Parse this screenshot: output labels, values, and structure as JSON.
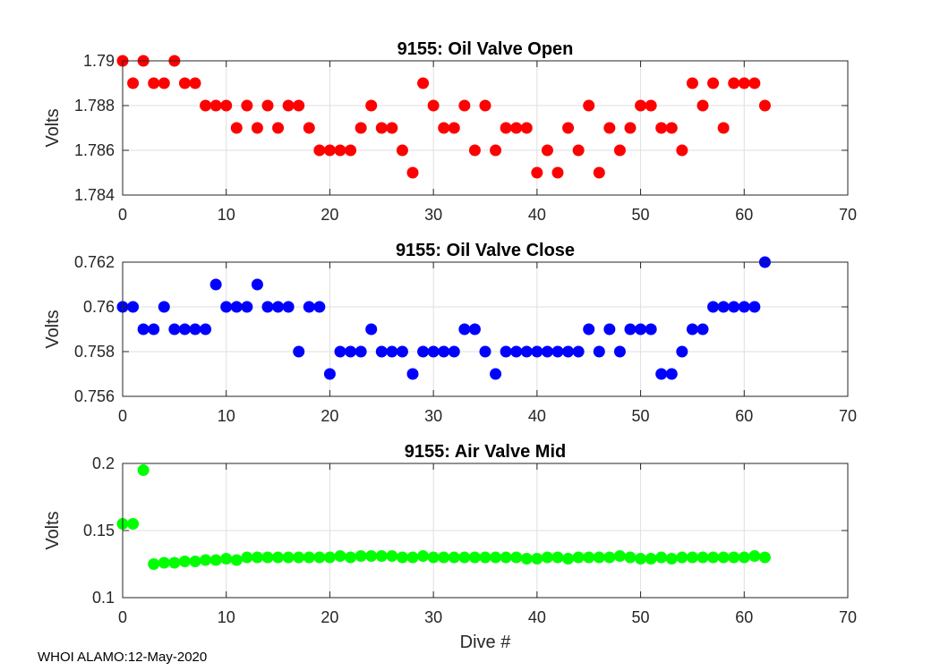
{
  "chart_data": [
    {
      "type": "scatter",
      "title": "9155: Oil Valve Open",
      "xlabel": "",
      "ylabel": "Volts",
      "xlim": [
        0,
        70
      ],
      "ylim": [
        1.784,
        1.79
      ],
      "xticks": [
        "0",
        "10",
        "20",
        "30",
        "40",
        "50",
        "60",
        "70"
      ],
      "yticks": [
        "1.784",
        "1.786",
        "1.788",
        "1.79"
      ],
      "grid": true,
      "color": "#ff0000",
      "x": [
        0,
        1,
        2,
        3,
        4,
        5,
        6,
        7,
        8,
        9,
        10,
        11,
        12,
        13,
        14,
        15,
        16,
        17,
        18,
        19,
        20,
        21,
        22,
        23,
        24,
        25,
        26,
        27,
        28,
        29,
        30,
        31,
        32,
        33,
        34,
        35,
        36,
        37,
        38,
        39,
        40,
        41,
        42,
        43,
        44,
        45,
        46,
        47,
        48,
        49,
        50,
        51,
        52,
        53,
        54,
        55,
        56,
        57,
        58,
        59,
        60,
        61,
        62
      ],
      "y": [
        1.79,
        1.789,
        1.79,
        1.789,
        1.789,
        1.79,
        1.789,
        1.789,
        1.788,
        1.788,
        1.788,
        1.787,
        1.788,
        1.787,
        1.788,
        1.787,
        1.788,
        1.788,
        1.787,
        1.786,
        1.786,
        1.786,
        1.786,
        1.787,
        1.788,
        1.787,
        1.787,
        1.786,
        1.785,
        1.789,
        1.788,
        1.787,
        1.787,
        1.788,
        1.786,
        1.788,
        1.786,
        1.787,
        1.787,
        1.787,
        1.785,
        1.786,
        1.785,
        1.787,
        1.786,
        1.788,
        1.785,
        1.787,
        1.786,
        1.787,
        1.788,
        1.788,
        1.787,
        1.787,
        1.786,
        1.789,
        1.788,
        1.789,
        1.787,
        1.789,
        1.789,
        1.789,
        1.788
      ]
    },
    {
      "type": "scatter",
      "title": "9155: Oil Valve Close",
      "xlabel": "",
      "ylabel": "Volts",
      "xlim": [
        0,
        70
      ],
      "ylim": [
        0.756,
        0.762
      ],
      "xticks": [
        "0",
        "10",
        "20",
        "30",
        "40",
        "50",
        "60",
        "70"
      ],
      "yticks": [
        "0.756",
        "0.758",
        "0.76",
        "0.762"
      ],
      "grid": true,
      "color": "#0000ff",
      "x": [
        0,
        1,
        2,
        3,
        4,
        5,
        6,
        7,
        8,
        9,
        10,
        11,
        12,
        13,
        14,
        15,
        16,
        17,
        18,
        19,
        20,
        21,
        22,
        23,
        24,
        25,
        26,
        27,
        28,
        29,
        30,
        31,
        32,
        33,
        34,
        35,
        36,
        37,
        38,
        39,
        40,
        41,
        42,
        43,
        44,
        45,
        46,
        47,
        48,
        49,
        50,
        51,
        52,
        53,
        54,
        55,
        56,
        57,
        58,
        59,
        60,
        61,
        62
      ],
      "y": [
        0.76,
        0.76,
        0.759,
        0.759,
        0.76,
        0.759,
        0.759,
        0.759,
        0.759,
        0.761,
        0.76,
        0.76,
        0.76,
        0.761,
        0.76,
        0.76,
        0.76,
        0.758,
        0.76,
        0.76,
        0.757,
        0.758,
        0.758,
        0.758,
        0.759,
        0.758,
        0.758,
        0.758,
        0.757,
        0.758,
        0.758,
        0.758,
        0.758,
        0.759,
        0.759,
        0.758,
        0.757,
        0.758,
        0.758,
        0.758,
        0.758,
        0.758,
        0.758,
        0.758,
        0.758,
        0.759,
        0.758,
        0.759,
        0.758,
        0.759,
        0.759,
        0.759,
        0.757,
        0.757,
        0.758,
        0.759,
        0.759,
        0.76,
        0.76,
        0.76,
        0.76,
        0.76,
        0.762
      ]
    },
    {
      "type": "scatter",
      "title": "9155: Air Valve Mid",
      "xlabel": "Dive #",
      "ylabel": "Volts",
      "xlim": [
        0,
        70
      ],
      "ylim": [
        0.1,
        0.2
      ],
      "xticks": [
        "0",
        "10",
        "20",
        "30",
        "40",
        "50",
        "60",
        "70"
      ],
      "yticks": [
        "0.1",
        "0.15",
        "0.2"
      ],
      "grid": true,
      "color": "#00ff00",
      "x": [
        0,
        1,
        2,
        3,
        4,
        5,
        6,
        7,
        8,
        9,
        10,
        11,
        12,
        13,
        14,
        15,
        16,
        17,
        18,
        19,
        20,
        21,
        22,
        23,
        24,
        25,
        26,
        27,
        28,
        29,
        30,
        31,
        32,
        33,
        34,
        35,
        36,
        37,
        38,
        39,
        40,
        41,
        42,
        43,
        44,
        45,
        46,
        47,
        48,
        49,
        50,
        51,
        52,
        53,
        54,
        55,
        56,
        57,
        58,
        59,
        60,
        61,
        62
      ],
      "y": [
        0.155,
        0.155,
        0.195,
        0.125,
        0.126,
        0.126,
        0.127,
        0.127,
        0.128,
        0.128,
        0.129,
        0.128,
        0.13,
        0.13,
        0.13,
        0.13,
        0.13,
        0.13,
        0.13,
        0.13,
        0.13,
        0.131,
        0.13,
        0.131,
        0.131,
        0.131,
        0.131,
        0.13,
        0.13,
        0.131,
        0.13,
        0.13,
        0.13,
        0.13,
        0.13,
        0.13,
        0.13,
        0.13,
        0.13,
        0.129,
        0.129,
        0.13,
        0.13,
        0.129,
        0.13,
        0.13,
        0.13,
        0.13,
        0.131,
        0.13,
        0.129,
        0.129,
        0.13,
        0.129,
        0.13,
        0.13,
        0.13,
        0.13,
        0.13,
        0.13,
        0.13,
        0.131,
        0.13
      ]
    }
  ],
  "footer": {
    "label": "WHOI ALAMO:12-May-2020"
  }
}
